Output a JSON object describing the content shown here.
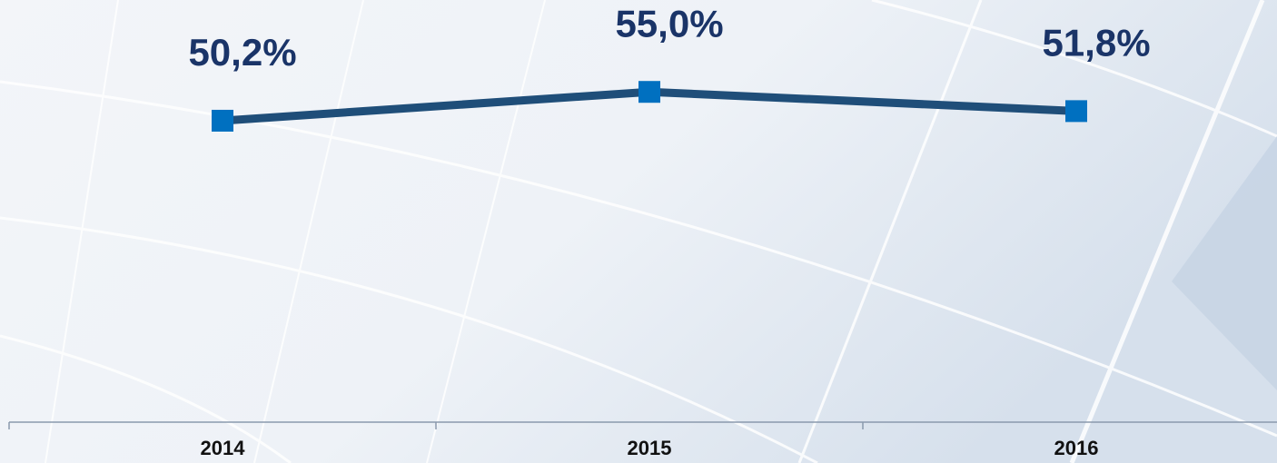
{
  "chart_data": {
    "type": "line",
    "categories": [
      "2014",
      "2015",
      "2016"
    ],
    "series": [
      {
        "color": "#1f4e79",
        "marker_color": "#0070c0",
        "values": [
          50.2,
          55.0,
          51.8
        ],
        "value_labels": [
          "50,2%",
          "55,0%",
          "51,8%"
        ]
      }
    ],
    "ylim": [
      0,
      70
    ]
  }
}
